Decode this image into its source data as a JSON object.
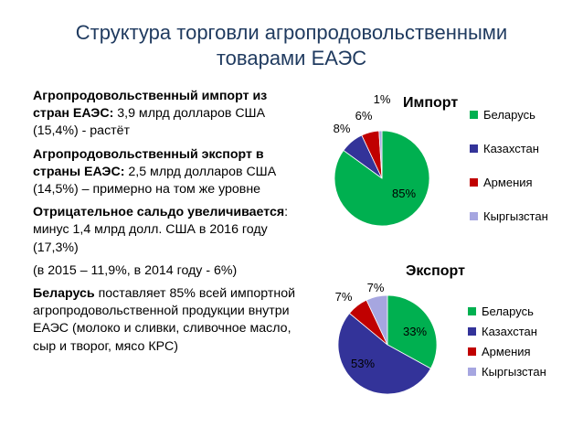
{
  "title": {
    "line1": "Структура торговли агропродовольственными",
    "line2": "товарами ЕАЭС"
  },
  "bullets": {
    "b1": {
      "bold": "Агропродовольственный импорт из стран ЕАЭС:",
      "text": " 3,9 млрд долларов США (15,4%) - растёт"
    },
    "b2": {
      "bold": "Агропродовольственный экспорт в страны ЕАЭС:",
      "text": " 2,5 млрд долларов США (14,5%) – примерно на том же уровне"
    },
    "b3": {
      "bold": "Отрицательное сальдо увеличивается",
      "text": ": минус 1,4 млрд долл. США в 2016 году (17,3%)"
    },
    "b4": {
      "text": "(в 2015 – 11,9%, в 2014 году - 6%)"
    },
    "b5": {
      "bold": "Беларусь",
      "text": " поставляет 85% всей импортной агропродовольственной продукции внутри ЕАЭС (молоко и сливки, сливочное масло, сыр и творог, мясо КРС)"
    }
  },
  "chart_data": [
    {
      "type": "pie",
      "title": "Импорт",
      "categories": [
        "Беларусь",
        "Казахстан",
        "Армения",
        "Кыргызстан"
      ],
      "values": [
        85,
        8,
        6,
        1
      ],
      "labels": [
        "85%",
        "8%",
        "6%",
        "1%"
      ],
      "colors": [
        "#00b050",
        "#333399",
        "#c00000",
        "#a6a6e0"
      ],
      "legend": "right"
    },
    {
      "type": "pie",
      "title": "Экспорт",
      "categories": [
        "Беларусь",
        "Казахстан",
        "Армения",
        "Кыргызстан"
      ],
      "values": [
        33,
        53,
        7,
        7
      ],
      "labels": [
        "33%",
        "53%",
        "7%",
        "7%"
      ],
      "colors": [
        "#00b050",
        "#333399",
        "#c00000",
        "#a6a6e0"
      ],
      "legend": "right"
    }
  ]
}
